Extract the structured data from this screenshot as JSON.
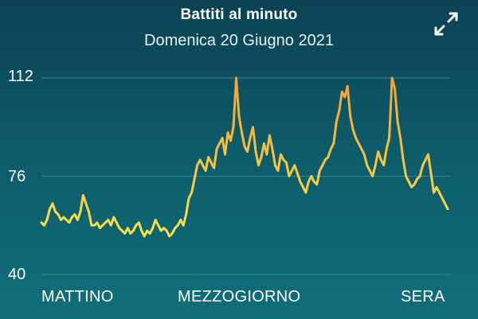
{
  "header": {
    "title": "Battiti al minuto",
    "subtitle": "Domenica 20 Giugno 2021"
  },
  "icons": {
    "expand": "expand-arrows-icon"
  },
  "colors": {
    "line_low": "#f7e24a",
    "line_high": "#f5a63c",
    "gridline": "#3a8793"
  },
  "chart_data": {
    "type": "line",
    "title": "Battiti al minuto",
    "subtitle": "Domenica 20 Giugno 2021",
    "ylim": [
      40,
      112
    ],
    "yticks": [
      "112",
      "76",
      "40"
    ],
    "xticks": [
      "MATTINO",
      "MEZZOGIORNO",
      "SERA"
    ],
    "grid": true,
    "series": [
      {
        "values": [
          59,
          58,
          60,
          64,
          66,
          63,
          62,
          60,
          61,
          60,
          59,
          61,
          62,
          60,
          63,
          69,
          66,
          63,
          58,
          58,
          59,
          57,
          58,
          59,
          60,
          58,
          61,
          59,
          57,
          56,
          55,
          57,
          55,
          56,
          58,
          59,
          56,
          54,
          56,
          55,
          57,
          60,
          58,
          56,
          57,
          56,
          54,
          55,
          57,
          58,
          60,
          58,
          62,
          68,
          70,
          75,
          80,
          82,
          80,
          78,
          83,
          81,
          79,
          86,
          88,
          90,
          84,
          92,
          89,
          94,
          112,
          98,
          92,
          87,
          85,
          90,
          94,
          85,
          80,
          83,
          88,
          84,
          91,
          86,
          80,
          78,
          84,
          82,
          81,
          76,
          78,
          80,
          77,
          74,
          72,
          70,
          74,
          76,
          74,
          73,
          78,
          80,
          82,
          83,
          86,
          88,
          96,
          100,
          107,
          105,
          109,
          98,
          93,
          90,
          88,
          86,
          84,
          80,
          78,
          76,
          80,
          85,
          82,
          80,
          86,
          90,
          112,
          108,
          96,
          90,
          82,
          76,
          74,
          72,
          73,
          75,
          76,
          80,
          82,
          84,
          77,
          70,
          72,
          70,
          68,
          66,
          64
        ]
      }
    ]
  }
}
